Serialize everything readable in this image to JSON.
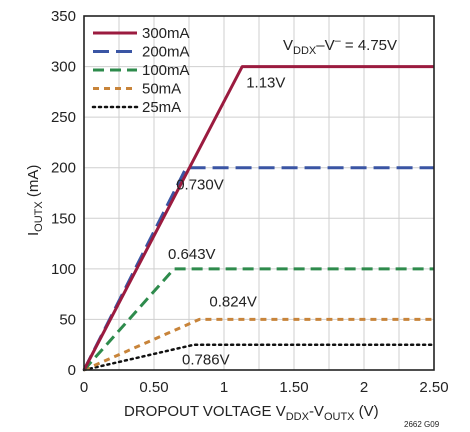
{
  "chart_data": {
    "type": "line",
    "xlabel": "DROPOUT VOLTAGE V",
    "xlabel_sub1": "DDX",
    "xlabel_mid": "-V",
    "xlabel_sub2": "OUTX",
    "xlabel_unit": " (V)",
    "ylabel": "I",
    "ylabel_sub": "OUTX",
    "ylabel_unit": " (mA)",
    "xlim": [
      0,
      2.5
    ],
    "ylim": [
      0,
      350
    ],
    "xticks": [
      0,
      0.5,
      1,
      1.5,
      2,
      2.5
    ],
    "xtick_labels": [
      "0",
      "0.50",
      "1",
      "1.50",
      "2",
      "2.50"
    ],
    "yticks": [
      0,
      50,
      100,
      150,
      200,
      250,
      300,
      350
    ],
    "ytick_labels": [
      "0",
      "50",
      "100",
      "150",
      "200",
      "250",
      "300",
      "350"
    ],
    "grid": true,
    "legend_position": "top-left",
    "condition": {
      "prefix": "V",
      "sub": "DDX",
      "mid": "–V",
      "sup": "–",
      "suffix": " = 4.75V"
    },
    "series": [
      {
        "name": "300mA",
        "color": "#9b1b3f",
        "dash": "solid",
        "width": 3,
        "x": [
          0,
          1.13,
          2.5
        ],
        "y": [
          0,
          300,
          300
        ]
      },
      {
        "name": "200mA",
        "color": "#3a55a4",
        "dash": "long-dash",
        "width": 3,
        "x": [
          0,
          0.73,
          2.5
        ],
        "y": [
          0,
          200,
          200
        ]
      },
      {
        "name": "100mA",
        "color": "#2e8b4c",
        "dash": "dash",
        "width": 3,
        "x": [
          0,
          0.643,
          2.5
        ],
        "y": [
          0,
          100,
          100
        ]
      },
      {
        "name": "50mA",
        "color": "#c8843a",
        "dash": "short-dash",
        "width": 3,
        "x": [
          0,
          0.824,
          2.5
        ],
        "y": [
          0,
          50,
          50
        ]
      },
      {
        "name": "25mA",
        "color": "#111111",
        "dash": "dot",
        "width": 2.5,
        "x": [
          0,
          0.786,
          2.5
        ],
        "y": [
          0,
          25,
          25
        ]
      }
    ],
    "annotations": [
      {
        "text": "1.13V",
        "x": 1.13,
        "y": 300
      },
      {
        "text": "0.730V",
        "x": 0.73,
        "y": 200
      },
      {
        "text": "0.643V",
        "x": 0.643,
        "y": 100
      },
      {
        "text": "0.824V",
        "x": 0.824,
        "y": 50
      },
      {
        "text": "0.786V",
        "x": 0.786,
        "y": 25
      }
    ],
    "figure_code": "2662 G09"
  }
}
